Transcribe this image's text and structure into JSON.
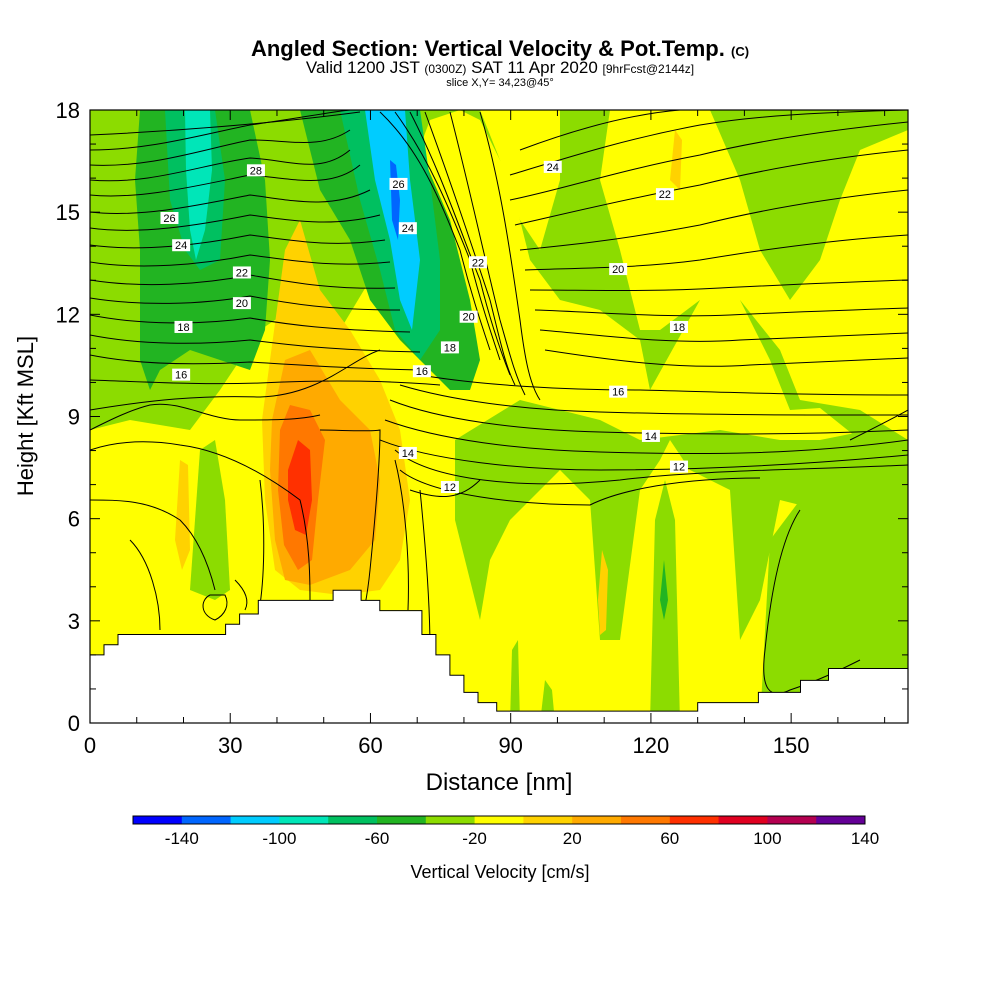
{
  "title": {
    "main": "Angled Section: Vertical Velocity & Pot.Temp.",
    "main_suffix": "(C)",
    "valid_prefix": "Valid 1200 JST",
    "valid_utc": "(0300Z)",
    "valid_date": "SAT 11 Apr 2020",
    "forecast": "[9hrFcst@2144z]",
    "slice": "slice X,Y= 34,23@45°"
  },
  "chart_data": {
    "type": "contour",
    "xlabel": "Distance [nm]",
    "ylabel": "Height [Kft MSL]",
    "xlim": [
      0,
      175
    ],
    "ylim": [
      0,
      18
    ],
    "x_ticks": [
      0,
      30,
      60,
      90,
      120,
      150
    ],
    "y_ticks": [
      0,
      3,
      6,
      9,
      12,
      15,
      18
    ],
    "terrain": [
      [
        0,
        2
      ],
      [
        3,
        2
      ],
      [
        3,
        2.3
      ],
      [
        6,
        2.3
      ],
      [
        6,
        2.6
      ],
      [
        24,
        2.6
      ],
      [
        24,
        2.6
      ],
      [
        29,
        2.6
      ],
      [
        29,
        2.9
      ],
      [
        32,
        2.9
      ],
      [
        32,
        3.2
      ],
      [
        36,
        3.2
      ],
      [
        36,
        3.6
      ],
      [
        52,
        3.6
      ],
      [
        52,
        3.9
      ],
      [
        58,
        3.9
      ],
      [
        58,
        3.6
      ],
      [
        62,
        3.6
      ],
      [
        62,
        3.3
      ],
      [
        71,
        3.3
      ],
      [
        71,
        2.6
      ],
      [
        74,
        2.6
      ],
      [
        74,
        2
      ],
      [
        77,
        2
      ],
      [
        77,
        1.4
      ],
      [
        80,
        1.4
      ],
      [
        80,
        0.9
      ],
      [
        83,
        0.9
      ],
      [
        83,
        0.6
      ],
      [
        87,
        0.6
      ],
      [
        87,
        0.35
      ],
      [
        130,
        0.35
      ],
      [
        130,
        0.6
      ],
      [
        143,
        0.6
      ],
      [
        143,
        0.9
      ],
      [
        152,
        0.9
      ],
      [
        152,
        1.25
      ],
      [
        158,
        1.25
      ],
      [
        158,
        1.6
      ],
      [
        175,
        1.6
      ],
      [
        175,
        0
      ],
      [
        0,
        0
      ]
    ],
    "theta_labels": [
      {
        "text": "28",
        "x": 35.5,
        "y": 16.2
      },
      {
        "text": "26",
        "x": 17,
        "y": 14.8
      },
      {
        "text": "24",
        "x": 19.5,
        "y": 14.0
      },
      {
        "text": "22",
        "x": 32.5,
        "y": 13.2
      },
      {
        "text": "20",
        "x": 32.5,
        "y": 12.3
      },
      {
        "text": "18",
        "x": 20,
        "y": 11.6
      },
      {
        "text": "16",
        "x": 19.5,
        "y": 10.2
      },
      {
        "text": "26",
        "x": 66,
        "y": 15.8
      },
      {
        "text": "24",
        "x": 68,
        "y": 14.5
      },
      {
        "text": "22",
        "x": 83,
        "y": 13.5
      },
      {
        "text": "20",
        "x": 81,
        "y": 11.9
      },
      {
        "text": "18",
        "x": 77,
        "y": 11.0
      },
      {
        "text": "16",
        "x": 71,
        "y": 10.3
      },
      {
        "text": "14",
        "x": 68,
        "y": 7.9
      },
      {
        "text": "12",
        "x": 77,
        "y": 6.9
      },
      {
        "text": "24",
        "x": 99,
        "y": 16.3
      },
      {
        "text": "22",
        "x": 123,
        "y": 15.5
      },
      {
        "text": "20",
        "x": 113,
        "y": 13.3
      },
      {
        "text": "18",
        "x": 126,
        "y": 11.6
      },
      {
        "text": "16",
        "x": 113,
        "y": 9.7
      },
      {
        "text": "14",
        "x": 120,
        "y": 8.4
      },
      {
        "text": "12",
        "x": 126,
        "y": 7.5
      }
    ],
    "colorbar": {
      "ticks": [
        "-140",
        "-100",
        "-60",
        "-20",
        "20",
        "60",
        "100",
        "140"
      ],
      "colors": [
        "#0000ff",
        "#0066ff",
        "#00ccff",
        "#00e6b8",
        "#00c060",
        "#22b422",
        "#8cdc00",
        "#ffff00",
        "#ffd200",
        "#ffaa00",
        "#ff7800",
        "#ff3000",
        "#e00020",
        "#b40050",
        "#640096"
      ],
      "label": "Vertical Velocity [cm/s]"
    }
  }
}
